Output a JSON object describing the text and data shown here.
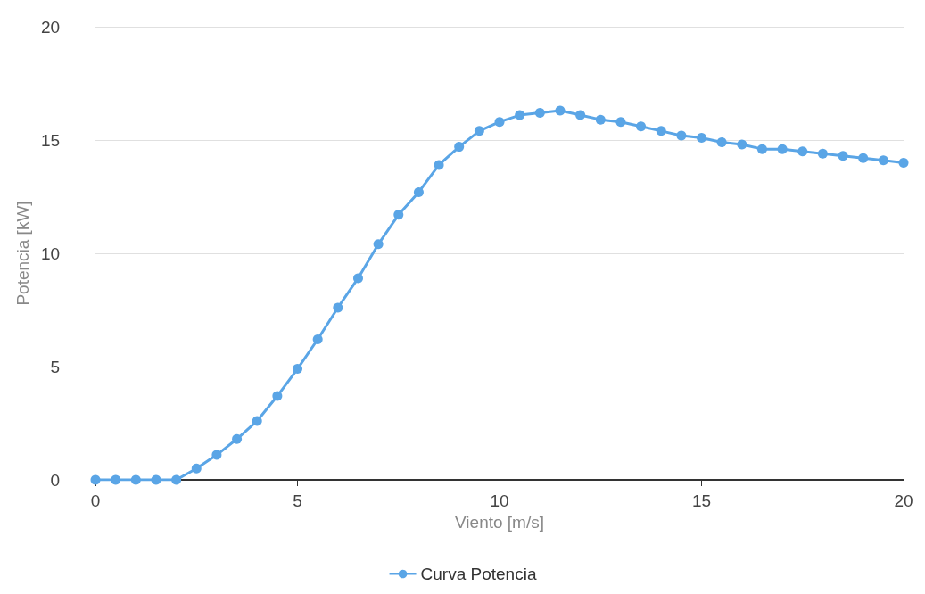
{
  "chart_data": {
    "type": "line",
    "xlabel": "Viento [m/s]",
    "ylabel": "Potencia [kW]",
    "x": [
      0,
      0.5,
      1,
      1.5,
      2,
      2.5,
      3,
      3.5,
      4,
      4.5,
      5,
      5.5,
      6,
      6.5,
      7,
      7.5,
      8,
      8.5,
      9,
      9.5,
      10,
      10.5,
      11,
      11.5,
      12,
      12.5,
      13,
      13.5,
      14,
      14.5,
      15,
      15.5,
      16,
      16.5,
      17,
      17.5,
      18,
      18.5,
      19,
      19.5,
      20
    ],
    "series": [
      {
        "name": "Curva Potencia",
        "color": "#5aa5e6",
        "values": [
          0,
          0,
          0,
          0,
          0,
          0.5,
          1.1,
          1.8,
          2.6,
          3.7,
          4.9,
          6.2,
          7.6,
          8.9,
          10.4,
          11.7,
          12.7,
          13.9,
          14.7,
          15.4,
          15.8,
          16.1,
          16.2,
          16.3,
          16.1,
          15.9,
          15.8,
          15.6,
          15.4,
          15.2,
          15.1,
          14.9,
          14.8,
          14.6,
          14.6,
          14.5,
          14.4,
          14.3,
          14.2,
          14.1,
          14.0
        ]
      }
    ],
    "xlim": [
      0,
      20
    ],
    "xticks": [
      0,
      5,
      10,
      15,
      20
    ],
    "ylim": [
      0,
      20
    ],
    "yticks": [
      0,
      5,
      10,
      15,
      20
    ],
    "grid": "y",
    "legend": "bottom",
    "marker": "circle",
    "line_style": "solid"
  }
}
